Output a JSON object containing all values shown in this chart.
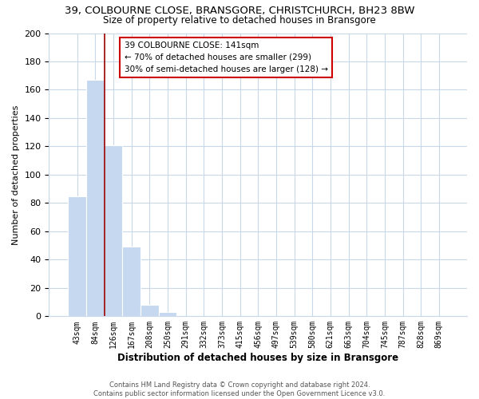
{
  "title": "39, COLBOURNE CLOSE, BRANSGORE, CHRISTCHURCH, BH23 8BW",
  "subtitle": "Size of property relative to detached houses in Bransgore",
  "xlabel": "Distribution of detached houses by size in Bransgore",
  "ylabel": "Number of detached properties",
  "bar_values": [
    85,
    167,
    121,
    49,
    8,
    3,
    0,
    0,
    0,
    0,
    0,
    0,
    0,
    0,
    0,
    0,
    0,
    0,
    0,
    0,
    0
  ],
  "bar_labels": [
    "43sqm",
    "84sqm",
    "126sqm",
    "167sqm",
    "208sqm",
    "250sqm",
    "291sqm",
    "332sqm",
    "373sqm",
    "415sqm",
    "456sqm",
    "497sqm",
    "539sqm",
    "580sqm",
    "621sqm",
    "663sqm",
    "704sqm",
    "745sqm",
    "787sqm",
    "828sqm",
    "869sqm"
  ],
  "bar_color": "#c5d8ef",
  "vline_color": "#990000",
  "vline_x": 1.5,
  "ylim": [
    0,
    200
  ],
  "yticks": [
    0,
    20,
    40,
    60,
    80,
    100,
    120,
    140,
    160,
    180,
    200
  ],
  "annotation_title": "39 COLBOURNE CLOSE: 141sqm",
  "annotation_line1": "← 70% of detached houses are smaller (299)",
  "annotation_line2": "30% of semi-detached houses are larger (128) →",
  "footer_line1": "Contains HM Land Registry data © Crown copyright and database right 2024.",
  "footer_line2": "Contains public sector information licensed under the Open Government Licence v3.0.",
  "bg_color": "#ffffff",
  "grid_color": "#c8d8e8"
}
